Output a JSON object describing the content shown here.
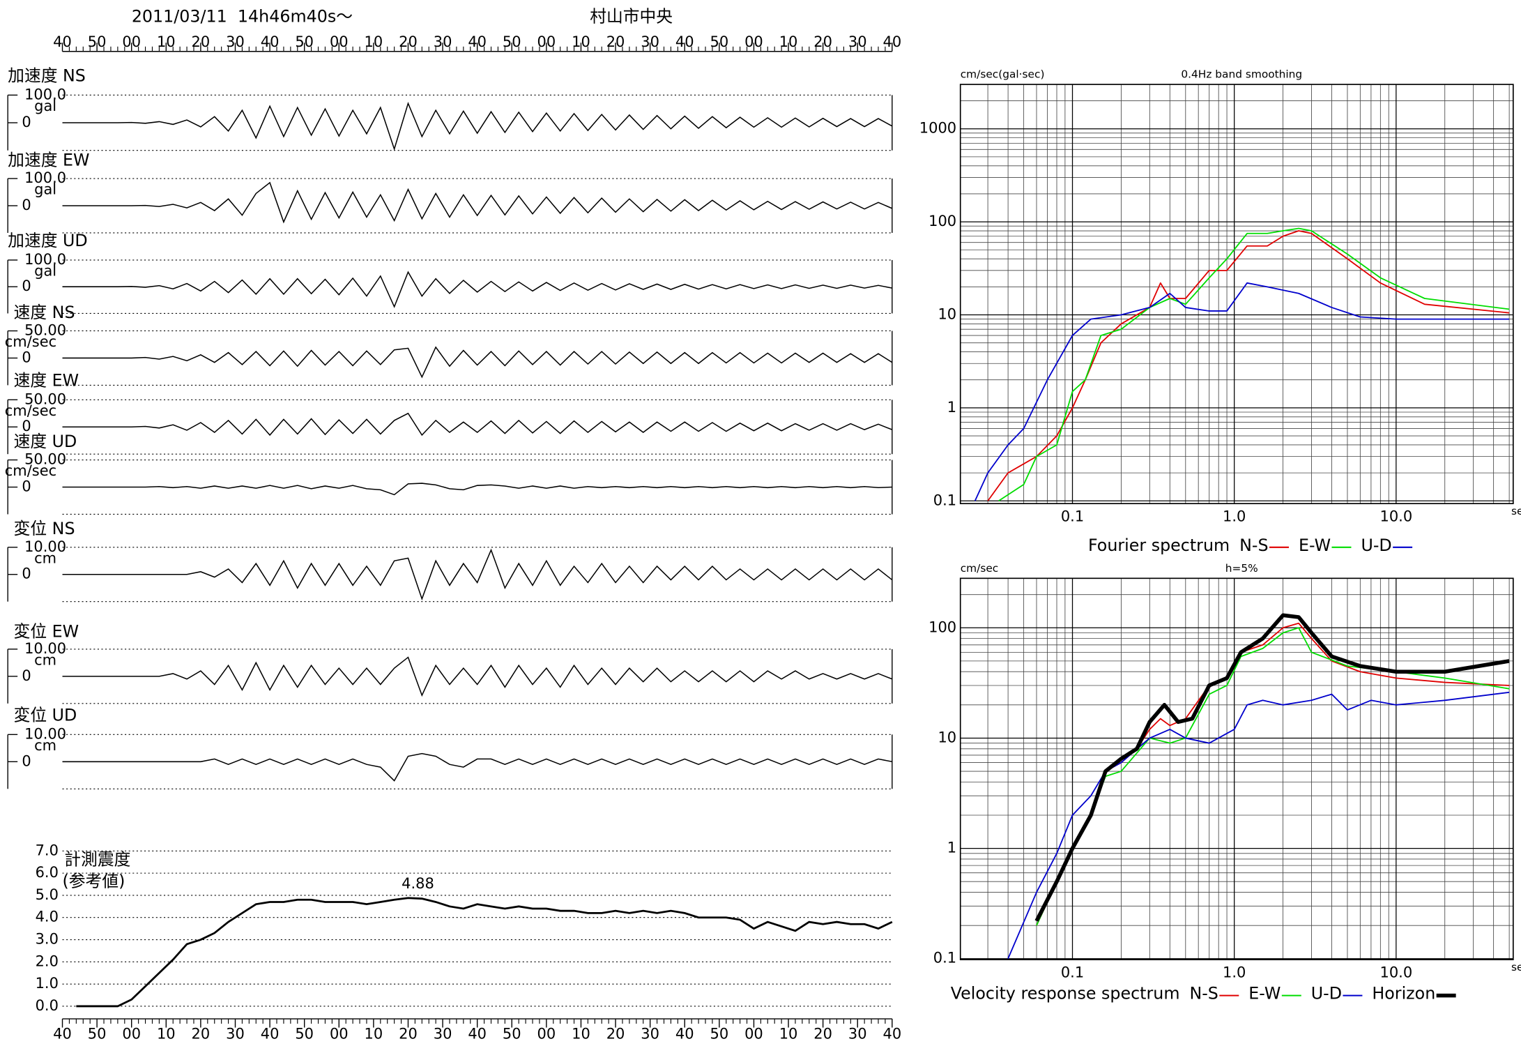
{
  "header": {
    "datetime": "2011/03/11  14h46m40s〜",
    "station": "村山市中央"
  },
  "time_labels": [
    "40",
    "50",
    "00",
    "10",
    "20",
    "30",
    "40",
    "50",
    "00",
    "10",
    "20",
    "30",
    "40",
    "50",
    "00",
    "10",
    "20",
    "30",
    "40",
    "50",
    "00",
    "10",
    "20",
    "30",
    "40"
  ],
  "chart_data": [
    {
      "type": "line",
      "title": "加速度 NS",
      "ylabel": "gal",
      "color": "#000000",
      "ylim": [
        -100,
        100
      ],
      "yticks": [
        {
          "value": 100,
          "label": "100.0"
        },
        0
      ],
      "values": [
        0,
        0,
        0,
        0,
        0,
        1,
        -2,
        4,
        -6,
        10,
        -15,
        22,
        -30,
        45,
        -55,
        60,
        -50,
        55,
        -45,
        50,
        -48,
        45,
        -40,
        55,
        -95,
        70,
        -50,
        45,
        -40,
        42,
        -38,
        40,
        -35,
        38,
        -32,
        35,
        -30,
        33,
        -28,
        30,
        -26,
        28,
        -24,
        26,
        -22,
        24,
        -20,
        22,
        -18,
        20,
        -16,
        18,
        -16,
        17,
        -15,
        16,
        -14,
        15,
        -14,
        15,
        -12
      ]
    },
    {
      "type": "line",
      "title": "加速度 EW",
      "ylabel": "gal",
      "color": "#000000",
      "ylim": [
        -100,
        100
      ],
      "yticks": [
        {
          "value": 100,
          "label": "100.0"
        },
        0
      ],
      "values": [
        0,
        0,
        0,
        0,
        0,
        0,
        1,
        -3,
        5,
        -8,
        12,
        -18,
        25,
        -35,
        45,
        85,
        -60,
        55,
        -50,
        48,
        -45,
        50,
        -42,
        40,
        -55,
        60,
        -48,
        45,
        -42,
        40,
        -36,
        38,
        -34,
        36,
        -30,
        32,
        -28,
        30,
        -26,
        28,
        -24,
        25,
        -22,
        23,
        -20,
        22,
        -18,
        20,
        -16,
        18,
        -15,
        16,
        -14,
        15,
        -13,
        14,
        -12,
        13,
        -12,
        12,
        -10
      ]
    },
    {
      "type": "line",
      "title": "加速度 UD",
      "ylabel": "gal",
      "color": "#000000",
      "ylim": [
        -100,
        100
      ],
      "yticks": [
        {
          "value": 100,
          "label": "100.0"
        },
        0
      ],
      "values": [
        0,
        0,
        0,
        0,
        0,
        1,
        -2,
        4,
        -8,
        12,
        -16,
        20,
        -22,
        25,
        -28,
        30,
        -28,
        30,
        -26,
        28,
        -30,
        32,
        -35,
        40,
        -75,
        55,
        -35,
        30,
        -25,
        24,
        -20,
        20,
        -18,
        18,
        -16,
        16,
        -14,
        14,
        -13,
        12,
        -12,
        11,
        -10,
        10,
        -10,
        9,
        -9,
        8,
        -8,
        8,
        -7,
        7,
        -7,
        7,
        -6,
        6,
        -6,
        6,
        -5,
        5,
        -5
      ]
    },
    {
      "type": "line",
      "title": "速度 NS",
      "ylabel": "cm/sec",
      "color": "#000000",
      "ylim": [
        -50,
        50
      ],
      "yticks": [
        {
          "value": 50,
          "label": "50.00"
        },
        0
      ],
      "values": [
        0,
        0,
        0,
        0,
        0,
        0,
        1,
        -2,
        3,
        -5,
        6,
        -8,
        10,
        -12,
        12,
        -14,
        13,
        -15,
        14,
        -13,
        12,
        -14,
        13,
        -12,
        15,
        18,
        -35,
        20,
        -15,
        14,
        -13,
        12,
        -14,
        13,
        -12,
        12,
        -13,
        12,
        -11,
        12,
        -11,
        11,
        -10,
        11,
        -10,
        10,
        -10,
        10,
        -9,
        10,
        -9,
        9,
        -9,
        9,
        -8,
        9,
        -8,
        8,
        -8,
        8,
        -8
      ]
    },
    {
      "type": "line",
      "title": "速度 EW",
      "ylabel": "cm/sec",
      "color": "#000000",
      "ylim": [
        -50,
        50
      ],
      "yticks": [
        {
          "value": 50,
          "label": "50.00"
        },
        0
      ],
      "values": [
        0,
        0,
        0,
        0,
        0,
        0,
        1,
        -2,
        4,
        -6,
        8,
        -10,
        12,
        -13,
        14,
        -15,
        14,
        -13,
        15,
        -14,
        13,
        -12,
        14,
        -13,
        12,
        25,
        -15,
        12,
        -10,
        9,
        -10,
        11,
        -12,
        12,
        -11,
        10,
        -12,
        11,
        -10,
        10,
        -9,
        9,
        -10,
        9,
        -8,
        9,
        -8,
        8,
        -8,
        7,
        -7,
        7,
        -7,
        6,
        -6,
        6,
        -6,
        6,
        -5,
        5,
        -5
      ]
    },
    {
      "type": "line",
      "title": "速度 UD",
      "ylabel": "cm/sec",
      "color": "#000000",
      "ylim": [
        -50,
        50
      ],
      "yticks": [
        {
          "value": 50,
          "label": "50.00"
        },
        0
      ],
      "values": [
        0,
        0,
        0,
        0,
        0,
        0,
        0,
        1,
        -1,
        1,
        -2,
        2,
        -2,
        2,
        -2,
        3,
        -2,
        3,
        -3,
        2,
        -2,
        3,
        -3,
        -5,
        -14,
        6,
        7,
        4,
        -3,
        -5,
        3,
        4,
        2,
        -2,
        2,
        -2,
        2,
        -2,
        1,
        -1,
        1,
        -1,
        1,
        -1,
        1,
        -1,
        1,
        -1,
        1,
        -1,
        1,
        -1,
        1,
        -1,
        1,
        -1,
        1,
        -1,
        1,
        -1,
        0
      ]
    },
    {
      "type": "line",
      "title": "変位 NS",
      "ylabel": "cm",
      "color": "#000000",
      "ylim": [
        -10,
        10
      ],
      "yticks": [
        {
          "value": 10,
          "label": "10.00"
        },
        0
      ],
      "values": [
        0,
        0,
        0,
        0,
        0,
        0,
        0,
        0,
        0,
        0,
        1,
        -1,
        2,
        -3,
        4,
        -4,
        5,
        -5,
        4,
        -4,
        4,
        -4,
        3,
        -4,
        5,
        6,
        -9,
        5,
        -4,
        4,
        -3,
        9,
        -5,
        4,
        -4,
        5,
        -4,
        3,
        -3,
        4,
        -3,
        3,
        -3,
        3,
        -2,
        3,
        -2,
        3,
        -2,
        2,
        -2,
        2,
        -2,
        2,
        -2,
        2,
        -2,
        2,
        -2,
        2,
        -2
      ]
    },
    {
      "type": "line",
      "title": "変位 EW",
      "ylabel": "cm",
      "color": "#000000",
      "ylim": [
        -10,
        10
      ],
      "yticks": [
        {
          "value": 10,
          "label": "10.00"
        },
        0
      ],
      "values": [
        0,
        0,
        0,
        0,
        0,
        0,
        0,
        0,
        1,
        -1,
        2,
        -3,
        4,
        -5,
        5,
        -5,
        4,
        -4,
        4,
        -3,
        3,
        -3,
        3,
        -3,
        3,
        7,
        -7,
        4,
        -3,
        3,
        -3,
        4,
        -4,
        4,
        -3,
        3,
        -4,
        4,
        -3,
        3,
        -3,
        3,
        -2,
        3,
        -2,
        2,
        -2,
        2,
        -2,
        2,
        -2,
        2,
        -1,
        2,
        -1,
        1,
        -1,
        1,
        -1,
        1,
        -1
      ]
    },
    {
      "type": "line",
      "title": "変位 UD",
      "ylabel": "cm",
      "color": "#000000",
      "ylim": [
        -10,
        10
      ],
      "yticks": [
        {
          "value": 10,
          "label": "10.00"
        },
        0
      ],
      "values": [
        0,
        0,
        0,
        0,
        0,
        0,
        0,
        0,
        0,
        0,
        0,
        1,
        -1,
        1,
        -1,
        1,
        -1,
        1,
        -1,
        1,
        -1,
        1,
        -1,
        -2,
        -7,
        2,
        3,
        2,
        -1,
        -2,
        1,
        1,
        -1,
        1,
        -1,
        1,
        -1,
        1,
        -1,
        1,
        -1,
        1,
        -1,
        1,
        -1,
        1,
        -1,
        1,
        -1,
        1,
        -1,
        1,
        -1,
        1,
        -1,
        1,
        -1,
        1,
        -1,
        1,
        0
      ]
    },
    {
      "type": "line",
      "title": "計測震度",
      "subtitle": "(参考値)",
      "color": "#000000",
      "ylim": [
        0,
        7
      ],
      "grid": true,
      "yticks": [
        {
          "value": 0,
          "label": "0.0"
        },
        {
          "value": 1,
          "label": "1.0"
        },
        {
          "value": 2,
          "label": "2.0"
        },
        {
          "value": 3,
          "label": "3.0"
        },
        {
          "value": 4,
          "label": "4.0"
        },
        {
          "value": 5,
          "label": "5.0"
        },
        {
          "value": 6,
          "label": "6.0"
        },
        {
          "value": 7,
          "label": "7.0"
        }
      ],
      "values": [
        null,
        0,
        0,
        0,
        0,
        0.3,
        0.9,
        1.5,
        2.1,
        2.8,
        3.0,
        3.3,
        3.8,
        4.2,
        4.6,
        4.7,
        4.7,
        4.8,
        4.8,
        4.7,
        4.7,
        4.7,
        4.6,
        4.7,
        4.8,
        4.88,
        4.85,
        4.7,
        4.5,
        4.4,
        4.6,
        4.5,
        4.4,
        4.5,
        4.4,
        4.4,
        4.3,
        4.3,
        4.2,
        4.2,
        4.3,
        4.2,
        4.3,
        4.2,
        4.3,
        4.2,
        4.0,
        4.0,
        4.0,
        3.9,
        3.5,
        3.8,
        3.6,
        3.4,
        3.8,
        3.7,
        3.8,
        3.7,
        3.7,
        3.5,
        3.8
      ]
    },
    {
      "type": "logline",
      "title": "0.4Hz band smoothing",
      "ylabel": "cm/sec(gal·sec)",
      "xlabel": "sec",
      "legend_title": "Fourier spectrum",
      "log_x": true,
      "log_y": true,
      "grid": true,
      "xlim": [
        0.0203,
        52.9
      ],
      "xticks": [
        0.1,
        {
          "value": 1,
          "label": "1.0"
        },
        {
          "value": 10,
          "label": "10.0"
        }
      ],
      "ylim": [
        0.0935,
        3000
      ],
      "yticks": [
        0.1,
        1,
        10,
        100,
        1000
      ],
      "series": [
        {
          "name": "N-S",
          "color": "#e00000",
          "width": 1.3,
          "x": [
            0.03,
            0.04,
            0.05,
            0.06,
            0.08,
            0.1,
            0.12,
            0.15,
            0.2,
            0.3,
            0.35,
            0.4,
            0.5,
            0.7,
            0.9,
            1.2,
            1.6,
            2,
            2.5,
            3,
            5,
            8,
            15,
            50
          ],
          "values": [
            0.1,
            0.2,
            0.25,
            0.3,
            0.5,
            1,
            2,
            5,
            8,
            12,
            22,
            15,
            15,
            30,
            30,
            55,
            55,
            70,
            80,
            75,
            40,
            22,
            13,
            10.5
          ]
        },
        {
          "name": "E-W",
          "color": "#00dd00",
          "width": 1.3,
          "x": [
            0.035,
            0.05,
            0.06,
            0.08,
            0.1,
            0.12,
            0.15,
            0.2,
            0.3,
            0.4,
            0.5,
            0.7,
            0.9,
            1.2,
            1.6,
            2,
            2.5,
            3,
            5,
            8,
            15,
            50
          ],
          "values": [
            0.1,
            0.15,
            0.3,
            0.4,
            1.5,
            2,
            6,
            7,
            12,
            15,
            13,
            25,
            40,
            75,
            75,
            80,
            85,
            80,
            45,
            25,
            15,
            11.5
          ]
        },
        {
          "name": "U-D",
          "color": "#0000cc",
          "width": 1.3,
          "x": [
            0.025,
            0.03,
            0.04,
            0.05,
            0.07,
            0.1,
            0.13,
            0.2,
            0.3,
            0.4,
            0.5,
            0.7,
            0.9,
            1.2,
            1.6,
            2.5,
            4,
            6,
            10,
            50
          ],
          "values": [
            0.1,
            0.2,
            0.4,
            0.6,
            2,
            6,
            9,
            10,
            12,
            17,
            12,
            11,
            11,
            22,
            20,
            17,
            12,
            9.5,
            9,
            9
          ]
        }
      ]
    },
    {
      "type": "logline",
      "title": "h=5%",
      "ylabel": "cm/sec",
      "xlabel": "sec",
      "legend_title": "Velocity response spectrum",
      "log_x": true,
      "log_y": true,
      "grid": true,
      "xlim": [
        0.0203,
        52.9
      ],
      "xticks": [
        0.1,
        {
          "value": 1,
          "label": "1.0"
        },
        {
          "value": 10,
          "label": "10.0"
        }
      ],
      "ylim": [
        0.098,
        281
      ],
      "yticks": [
        0.1,
        1,
        10,
        100
      ],
      "series": [
        {
          "name": "N-S",
          "color": "#e00000",
          "width": 1.3,
          "x": [
            0.06,
            0.08,
            0.1,
            0.13,
            0.16,
            0.2,
            0.25,
            0.3,
            0.35,
            0.4,
            0.5,
            0.7,
            0.9,
            1.1,
            1.5,
            2,
            2.5,
            3,
            4,
            6,
            10,
            20,
            50
          ],
          "values": [
            0.2,
            0.5,
            1,
            2,
            5,
            6,
            8,
            12,
            15,
            13,
            15,
            30,
            35,
            60,
            70,
            100,
            110,
            80,
            50,
            40,
            35,
            32,
            30
          ]
        },
        {
          "name": "E-W",
          "color": "#00dd00",
          "width": 1.3,
          "x": [
            0.06,
            0.08,
            0.1,
            0.13,
            0.16,
            0.2,
            0.3,
            0.4,
            0.5,
            0.7,
            0.9,
            1.1,
            1.5,
            2,
            2.5,
            3,
            5,
            10,
            20,
            50
          ],
          "values": [
            0.2,
            0.5,
            1,
            2,
            4.5,
            5,
            10,
            9,
            10,
            25,
            30,
            55,
            65,
            90,
            100,
            60,
            45,
            40,
            35,
            28
          ]
        },
        {
          "name": "U-D",
          "color": "#0000cc",
          "width": 1.3,
          "x": [
            0.04,
            0.06,
            0.08,
            0.1,
            0.13,
            0.16,
            0.2,
            0.3,
            0.4,
            0.5,
            0.7,
            1,
            1.2,
            1.5,
            2,
            3,
            4,
            5,
            7,
            10,
            20,
            50
          ],
          "values": [
            0.1,
            0.4,
            0.9,
            2,
            3,
            5,
            6,
            10,
            12,
            10,
            9,
            12,
            20,
            22,
            20,
            22,
            25,
            18,
            22,
            20,
            22,
            26
          ]
        },
        {
          "name": "Horizon",
          "color": "#000000",
          "width": 4,
          "x": [
            0.06,
            0.08,
            0.1,
            0.13,
            0.16,
            0.2,
            0.25,
            0.3,
            0.37,
            0.45,
            0.55,
            0.7,
            0.9,
            1.1,
            1.5,
            2,
            2.5,
            3,
            4,
            6,
            10,
            20,
            50
          ],
          "values": [
            0.22,
            0.5,
            1,
            2,
            5,
            6.5,
            8,
            14,
            20,
            14,
            15,
            30,
            35,
            60,
            80,
            130,
            125,
            90,
            55,
            45,
            40,
            40,
            50
          ]
        }
      ]
    }
  ]
}
